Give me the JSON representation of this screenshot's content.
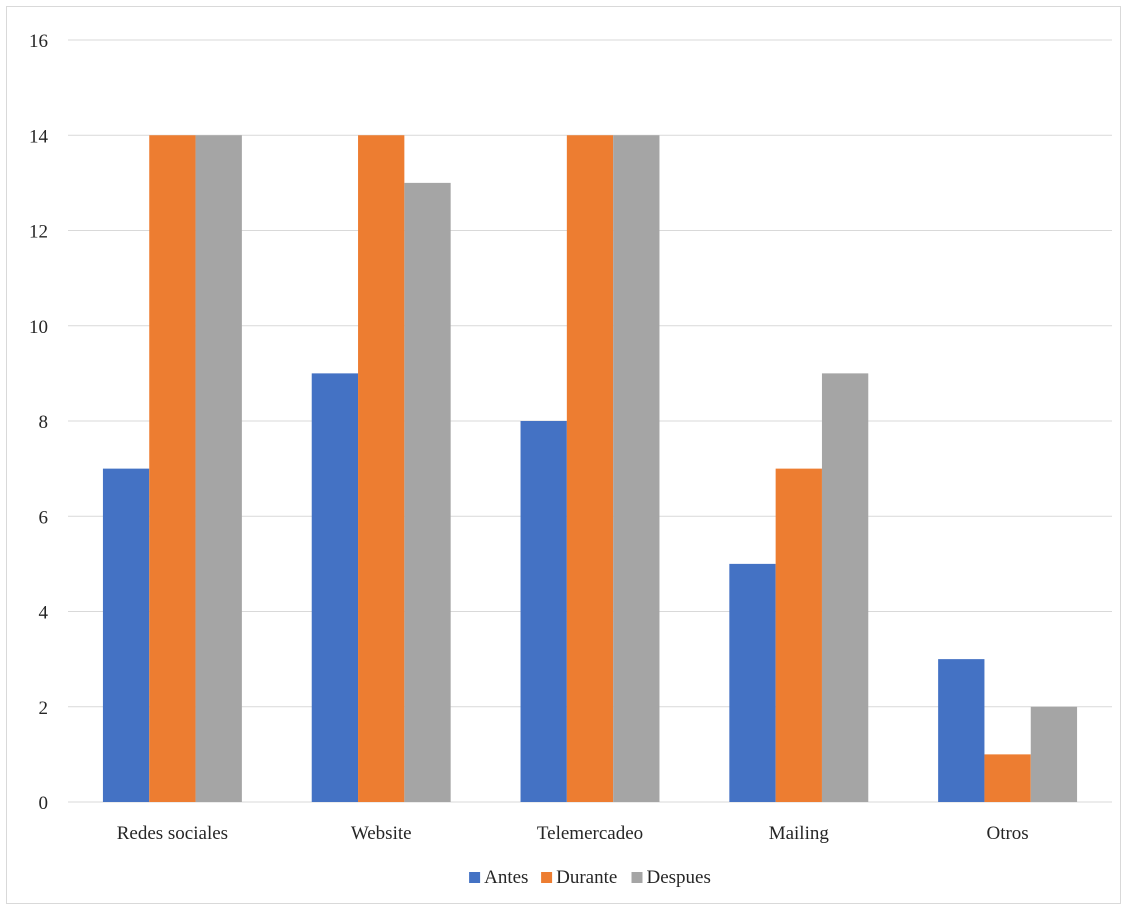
{
  "chart_data": {
    "type": "bar",
    "title": "",
    "xlabel": "",
    "ylabel": "",
    "categories": [
      "Redes sociales",
      "Website",
      "Telemercadeo",
      "Mailing",
      "Otros"
    ],
    "series": [
      {
        "name": "Antes",
        "color": "#4472c4",
        "values": [
          7,
          9,
          8,
          5,
          3
        ]
      },
      {
        "name": "Durante",
        "color": "#ed7d31",
        "values": [
          14,
          14,
          14,
          7,
          1
        ]
      },
      {
        "name": "Despues",
        "color": "#a5a5a5",
        "values": [
          14,
          13,
          14,
          9,
          2
        ]
      }
    ],
    "ylim": [
      0,
      16
    ],
    "yticks": [
      0,
      2,
      4,
      6,
      8,
      10,
      12,
      14,
      16
    ],
    "grid": true,
    "legend_position": "bottom",
    "gridline_color": "#d9d9d9"
  }
}
